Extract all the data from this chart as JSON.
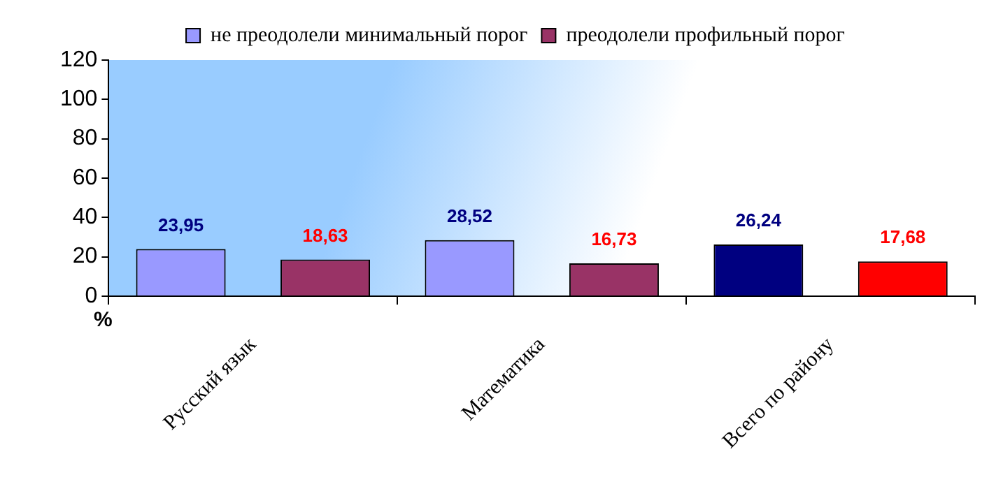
{
  "chart_data": {
    "type": "bar",
    "ylabel": "%",
    "categories": [
      "Русский язык",
      "Математика",
      "Всего по району"
    ],
    "series": [
      {
        "name": "не преодолели минимальный порог",
        "color": "#9999ff",
        "colors": [
          "#9999ff",
          "#9999ff",
          "#000080"
        ],
        "values": [
          23.95,
          28.52,
          26.24
        ],
        "value_labels": [
          "23,95",
          "28,52",
          "26,24"
        ]
      },
      {
        "name": "преодолели профильный порог",
        "color": "#993366",
        "colors": [
          "#993366",
          "#993366",
          "#ff0000"
        ],
        "values": [
          18.63,
          16.73,
          17.68
        ],
        "value_labels": [
          "18,63",
          "16,73",
          "17,68"
        ]
      }
    ],
    "ylim": [
      0,
      120
    ],
    "yticks": [
      0,
      20,
      40,
      60,
      80,
      100,
      120
    ],
    "grid": false,
    "legend": "top"
  }
}
